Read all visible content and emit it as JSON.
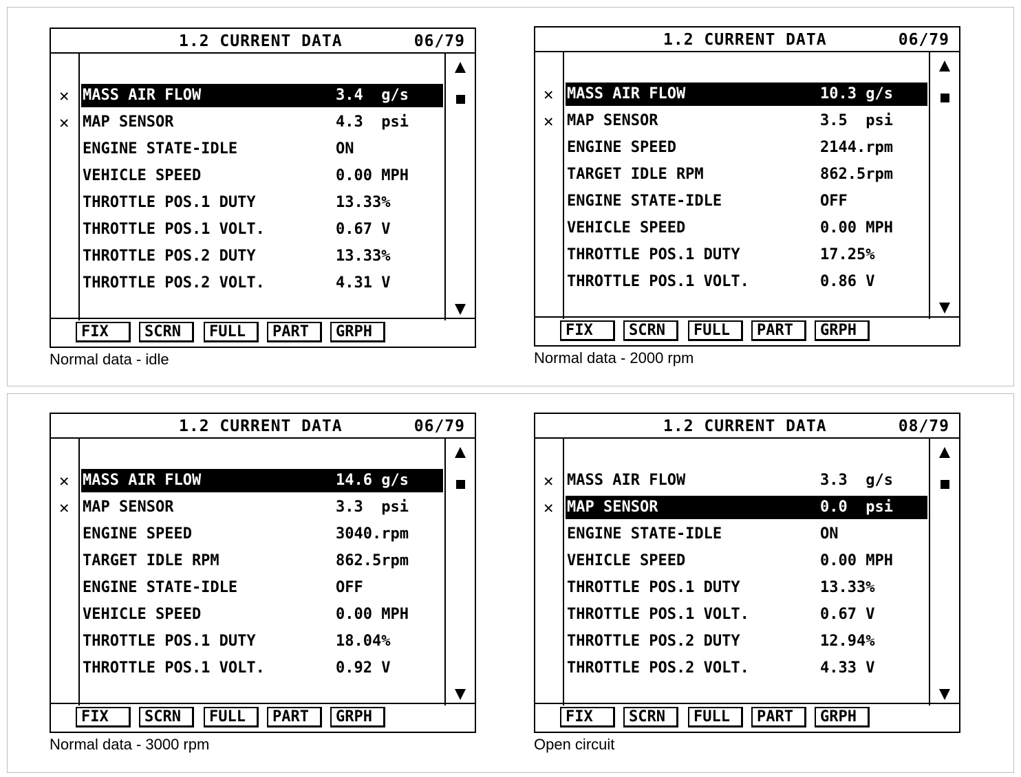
{
  "buttons": [
    "FIX",
    "SCRN",
    "FULL",
    "PART",
    "GRPH"
  ],
  "panels": [
    {
      "title": "1.2 CURRENT DATA",
      "page": "06/79",
      "caption": "Normal data - idle",
      "rows": [
        {
          "label": "MASS AIR FLOW",
          "value": "3.4  g/s",
          "starred": "✕",
          "selected": true
        },
        {
          "label": "MAP SENSOR",
          "value": "4.3  psi",
          "starred": "✕",
          "selected": false
        },
        {
          "label": "ENGINE STATE-IDLE",
          "value": "ON",
          "starred": "",
          "selected": false
        },
        {
          "label": "VEHICLE SPEED",
          "value": "0.00 MPH",
          "starred": "",
          "selected": false
        },
        {
          "label": "THROTTLE POS.1 DUTY",
          "value": "13.33%",
          "starred": "",
          "selected": false
        },
        {
          "label": "THROTTLE POS.1 VOLT.",
          "value": "0.67 V",
          "starred": "",
          "selected": false
        },
        {
          "label": "THROTTLE POS.2 DUTY",
          "value": "13.33%",
          "starred": "",
          "selected": false
        },
        {
          "label": "THROTTLE POS.2 VOLT.",
          "value": "4.31 V",
          "starred": "",
          "selected": false
        }
      ]
    },
    {
      "title": "1.2 CURRENT DATA",
      "page": "06/79",
      "caption": "Normal data - 2000 rpm",
      "rows": [
        {
          "label": "MASS AIR FLOW",
          "value": "10.3 g/s",
          "starred": "✕",
          "selected": true
        },
        {
          "label": "MAP SENSOR",
          "value": "3.5  psi",
          "starred": "✕",
          "selected": false
        },
        {
          "label": "ENGINE SPEED",
          "value": "2144.rpm",
          "starred": "",
          "selected": false
        },
        {
          "label": "TARGET IDLE RPM",
          "value": "862.5rpm",
          "starred": "",
          "selected": false
        },
        {
          "label": "ENGINE STATE-IDLE",
          "value": "OFF",
          "starred": "",
          "selected": false
        },
        {
          "label": "VEHICLE SPEED",
          "value": "0.00 MPH",
          "starred": "",
          "selected": false
        },
        {
          "label": "THROTTLE POS.1 DUTY",
          "value": "17.25%",
          "starred": "",
          "selected": false
        },
        {
          "label": "THROTTLE POS.1 VOLT.",
          "value": "0.86 V",
          "starred": "",
          "selected": false
        }
      ]
    },
    {
      "title": "1.2 CURRENT DATA",
      "page": "06/79",
      "caption": "Normal data - 3000 rpm",
      "rows": [
        {
          "label": "MASS AIR FLOW",
          "value": "14.6 g/s",
          "starred": "✕",
          "selected": true
        },
        {
          "label": "MAP SENSOR",
          "value": "3.3  psi",
          "starred": "✕",
          "selected": false
        },
        {
          "label": "ENGINE SPEED",
          "value": "3040.rpm",
          "starred": "",
          "selected": false
        },
        {
          "label": "TARGET IDLE RPM",
          "value": "862.5rpm",
          "starred": "",
          "selected": false
        },
        {
          "label": "ENGINE STATE-IDLE",
          "value": "OFF",
          "starred": "",
          "selected": false
        },
        {
          "label": "VEHICLE SPEED",
          "value": "0.00 MPH",
          "starred": "",
          "selected": false
        },
        {
          "label": "THROTTLE POS.1 DUTY",
          "value": "18.04%",
          "starred": "",
          "selected": false
        },
        {
          "label": "THROTTLE POS.1 VOLT.",
          "value": "0.92 V",
          "starred": "",
          "selected": false
        }
      ]
    },
    {
      "title": "1.2 CURRENT DATA",
      "page": "08/79",
      "caption": "Open circuit",
      "rows": [
        {
          "label": "MASS AIR FLOW",
          "value": "3.3  g/s",
          "starred": "✕",
          "selected": false
        },
        {
          "label": "MAP SENSOR",
          "value": "0.0  psi",
          "starred": "✕",
          "selected": true
        },
        {
          "label": "ENGINE STATE-IDLE",
          "value": "ON",
          "starred": "",
          "selected": false
        },
        {
          "label": "VEHICLE SPEED",
          "value": "0.00 MPH",
          "starred": "",
          "selected": false
        },
        {
          "label": "THROTTLE POS.1 DUTY",
          "value": "13.33%",
          "starred": "",
          "selected": false
        },
        {
          "label": "THROTTLE POS.1 VOLT.",
          "value": "0.67 V",
          "starred": "",
          "selected": false
        },
        {
          "label": "THROTTLE POS.2 DUTY",
          "value": "12.94%",
          "starred": "",
          "selected": false
        },
        {
          "label": "THROTTLE POS.2 VOLT.",
          "value": "4.33 V",
          "starred": "",
          "selected": false
        }
      ]
    }
  ]
}
